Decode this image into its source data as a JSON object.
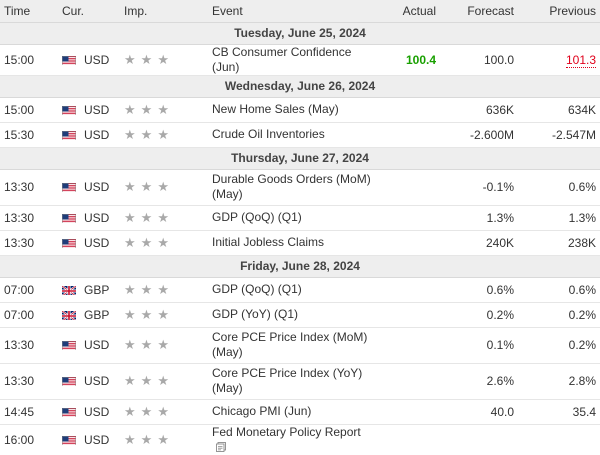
{
  "headers": {
    "time": "Time",
    "cur": "Cur.",
    "imp": "Imp.",
    "event": "Event",
    "actual": "Actual",
    "forecast": "Forecast",
    "previous": "Previous"
  },
  "colors": {
    "header_bg": "#eeeeee",
    "actual_better": "#19a000",
    "previous_revised": "#e0001b",
    "star": "#a9a9a9"
  },
  "days": [
    {
      "label": "Tuesday, June 25, 2024",
      "events": [
        {
          "time": "15:00",
          "flag_icon": "us-flag-icon",
          "currency": "USD",
          "importance": 3,
          "event": "CB Consumer Confidence (Jun)",
          "actual": "100.4",
          "actual_status": "better",
          "forecast": "100.0",
          "previous": "101.3",
          "previous_status": "revised",
          "lines": 1
        }
      ]
    },
    {
      "label": "Wednesday, June 26, 2024",
      "events": [
        {
          "time": "15:00",
          "flag_icon": "us-flag-icon",
          "currency": "USD",
          "importance": 3,
          "event": "New Home Sales (May)",
          "actual": "",
          "forecast": "636K",
          "previous": "634K",
          "lines": 1
        },
        {
          "time": "15:30",
          "flag_icon": "us-flag-icon",
          "currency": "USD",
          "importance": 3,
          "event": "Crude Oil Inventories",
          "actual": "",
          "forecast": "-2.600M",
          "previous": "-2.547M",
          "lines": 1
        }
      ]
    },
    {
      "label": "Thursday, June 27, 2024",
      "events": [
        {
          "time": "13:30",
          "flag_icon": "us-flag-icon",
          "currency": "USD",
          "importance": 3,
          "event": "Durable Goods Orders (MoM) (May)",
          "actual": "",
          "forecast": "-0.1%",
          "previous": "0.6%",
          "lines": 2
        },
        {
          "time": "13:30",
          "flag_icon": "us-flag-icon",
          "currency": "USD",
          "importance": 3,
          "event": "GDP (QoQ) (Q1)",
          "actual": "",
          "forecast": "1.3%",
          "previous": "1.3%",
          "lines": 1
        },
        {
          "time": "13:30",
          "flag_icon": "us-flag-icon",
          "currency": "USD",
          "importance": 3,
          "event": "Initial Jobless Claims",
          "actual": "",
          "forecast": "240K",
          "previous": "238K",
          "lines": 1
        }
      ]
    },
    {
      "label": "Friday, June 28, 2024",
      "events": [
        {
          "time": "07:00",
          "flag_icon": "uk-flag-icon",
          "currency": "GBP",
          "importance": 3,
          "event": "GDP (QoQ) (Q1)",
          "actual": "",
          "forecast": "0.6%",
          "previous": "0.6%",
          "lines": 1
        },
        {
          "time": "07:00",
          "flag_icon": "uk-flag-icon",
          "currency": "GBP",
          "importance": 3,
          "event": "GDP (YoY) (Q1)",
          "actual": "",
          "forecast": "0.2%",
          "previous": "0.2%",
          "lines": 1
        },
        {
          "time": "13:30",
          "flag_icon": "us-flag-icon",
          "currency": "USD",
          "importance": 3,
          "event": "Core PCE Price Index (MoM) (May)",
          "actual": "",
          "forecast": "0.1%",
          "previous": "0.2%",
          "lines": 2
        },
        {
          "time": "13:30",
          "flag_icon": "us-flag-icon",
          "currency": "USD",
          "importance": 3,
          "event": "Core PCE Price Index (YoY) (May)",
          "actual": "",
          "forecast": "2.6%",
          "previous": "2.8%",
          "lines": 2
        },
        {
          "time": "14:45",
          "flag_icon": "us-flag-icon",
          "currency": "USD",
          "importance": 3,
          "event": "Chicago PMI (Jun)",
          "actual": "",
          "forecast": "40.0",
          "previous": "35.4",
          "lines": 1
        },
        {
          "time": "16:00",
          "flag_icon": "us-flag-icon",
          "currency": "USD",
          "importance": 3,
          "event": "Fed Monetary Policy Report",
          "actual": "",
          "forecast": "",
          "previous": "",
          "has_document_icon": true,
          "lines": 1
        }
      ]
    }
  ]
}
